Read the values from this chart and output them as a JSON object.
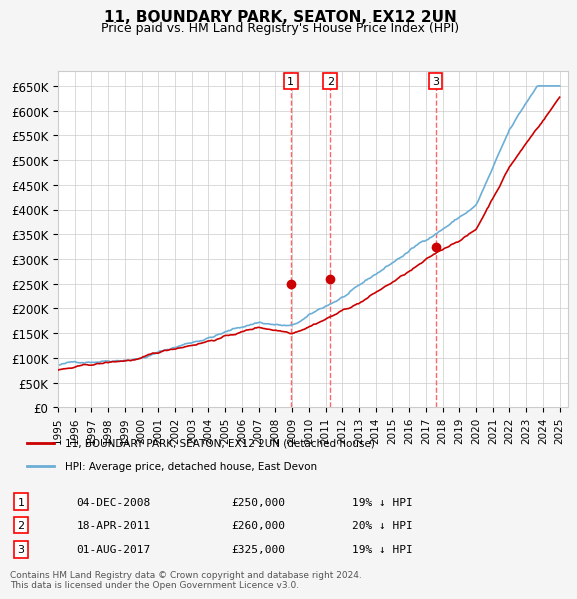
{
  "title": "11, BOUNDARY PARK, SEATON, EX12 2UN",
  "subtitle": "Price paid vs. HM Land Registry's House Price Index (HPI)",
  "hpi_color": "#6baed6",
  "price_color": "#cc0000",
  "marker_color": "#cc0000",
  "vline_color": "#ff6666",
  "ylim": [
    0,
    680000
  ],
  "yticks": [
    0,
    50000,
    100000,
    150000,
    200000,
    250000,
    300000,
    350000,
    400000,
    450000,
    500000,
    550000,
    600000,
    650000
  ],
  "ytick_labels": [
    "£0",
    "£50K",
    "£100K",
    "£150K",
    "£200K",
    "£250K",
    "£300K",
    "£350K",
    "£400K",
    "£450K",
    "£500K",
    "£550K",
    "£600K",
    "£650K"
  ],
  "xlabel_years": [
    "1995",
    "1996",
    "1997",
    "1998",
    "1999",
    "2000",
    "2001",
    "2002",
    "2003",
    "2004",
    "2005",
    "2006",
    "2007",
    "2008",
    "2009",
    "2010",
    "2011",
    "2012",
    "2013",
    "2014",
    "2015",
    "2016",
    "2017",
    "2018",
    "2019",
    "2020",
    "2021",
    "2022",
    "2023",
    "2024",
    "2025"
  ],
  "transactions": [
    {
      "label": "1",
      "date": "04-DEC-2008",
      "price": 250000,
      "hpi_pct": "19% ↓ HPI",
      "x": 2008.92
    },
    {
      "label": "2",
      "date": "18-APR-2011",
      "price": 260000,
      "hpi_pct": "20% ↓ HPI",
      "x": 2011.29
    },
    {
      "label": "3",
      "date": "01-AUG-2017",
      "price": 325000,
      "hpi_pct": "19% ↓ HPI",
      "x": 2017.58
    }
  ],
  "legend_label_price": "11, BOUNDARY PARK, SEATON, EX12 2UN (detached house)",
  "legend_label_hpi": "HPI: Average price, detached house, East Devon",
  "footer": "Contains HM Land Registry data © Crown copyright and database right 2024.\nThis data is licensed under the Open Government Licence v3.0.",
  "bg_color": "#f5f5f5",
  "plot_bg_color": "#ffffff"
}
